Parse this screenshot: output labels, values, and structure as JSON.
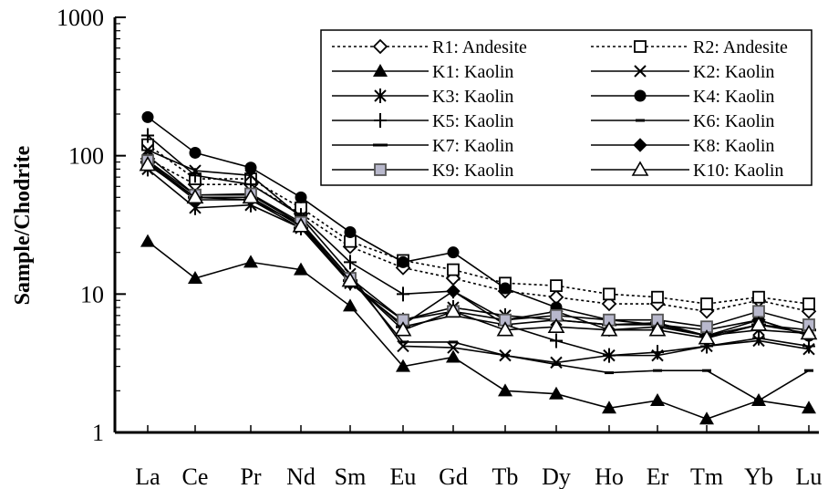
{
  "chart_data": {
    "type": "line",
    "title": "",
    "xlabel": "",
    "ylabel": "Sample/Chodrite",
    "yscale": "log",
    "ylim": [
      1,
      1000
    ],
    "yticks": [
      "1",
      "10",
      "100",
      "1000"
    ],
    "grid": false,
    "legend_position": "top-right",
    "categories": [
      "La",
      "Ce",
      "Pr",
      "Nd",
      "Sm",
      "Eu",
      "Gd",
      "Tb",
      "Dy",
      "Ho",
      "Er",
      "Tm",
      "Yb",
      "Lu"
    ],
    "series": [
      {
        "name": "R1: Andesite",
        "marker": "diamond-open",
        "line": "dotted",
        "values": [
          95,
          62,
          62,
          38,
          22,
          15.5,
          13,
          10.5,
          9.5,
          8.5,
          8.5,
          7.5,
          9,
          7.5
        ]
      },
      {
        "name": "R2: Andesite",
        "marker": "square-open",
        "line": "dotted",
        "values": [
          120,
          68,
          68,
          42,
          24,
          17.5,
          15,
          12,
          11.5,
          10,
          9.5,
          8.5,
          9.5,
          8.5
        ]
      },
      {
        "name": "K1: Kaolin",
        "marker": "triangle-filled",
        "line": "solid",
        "values": [
          24,
          13,
          17,
          15,
          8.2,
          3,
          3.5,
          2,
          1.9,
          1.5,
          1.7,
          1.25,
          1.7,
          1.5
        ]
      },
      {
        "name": "K2: Kaolin",
        "marker": "x",
        "line": "solid",
        "values": [
          110,
          78,
          72,
          36,
          14,
          4.2,
          4.1,
          3.6,
          3.2,
          3.6,
          3.6,
          4.2,
          4.6,
          4
        ]
      },
      {
        "name": "K3: Kaolin",
        "marker": "asterisk",
        "line": "solid",
        "values": [
          80,
          42,
          44,
          30,
          12,
          6.5,
          8,
          7,
          6.5,
          6,
          6,
          5,
          5.5,
          5.2
        ]
      },
      {
        "name": "K4: Kaolin",
        "marker": "circle-filled",
        "line": "solid",
        "values": [
          190,
          105,
          82,
          50,
          28,
          17,
          20,
          11,
          8,
          6.5,
          6,
          5.5,
          6.5,
          5
        ]
      },
      {
        "name": "K5: Kaolin",
        "marker": "plus",
        "line": "solid",
        "values": [
          140,
          72,
          62,
          37,
          17,
          10,
          10.5,
          6,
          4.6,
          3.6,
          3.8,
          4.2,
          4.8,
          4.2
        ]
      },
      {
        "name": "K6: Kaolin",
        "marker": "dash-small",
        "line": "solid",
        "values": [
          100,
          52,
          52,
          32,
          13,
          4.5,
          4.5,
          3.6,
          3.1,
          2.7,
          2.8,
          2.8,
          1.7,
          2.8
        ]
      },
      {
        "name": "K7: Kaolin",
        "marker": "dash",
        "line": "solid",
        "values": [
          90,
          50,
          48,
          30,
          12.5,
          5.8,
          7,
          6,
          6.5,
          6,
          6.2,
          5,
          6,
          5.5
        ]
      },
      {
        "name": "K8: Kaolin",
        "marker": "diamond-filled",
        "line": "solid",
        "values": [
          88,
          48,
          48,
          32,
          12,
          6,
          10.5,
          6.5,
          7.5,
          5.5,
          5.8,
          5,
          6.5,
          5
        ]
      },
      {
        "name": "K9: Kaolin",
        "marker": "square-gray",
        "line": "solid",
        "values": [
          92,
          52,
          53,
          33,
          13,
          6.5,
          7.5,
          6.5,
          7,
          6.5,
          6.5,
          5.8,
          7.5,
          6
        ]
      },
      {
        "name": "K10: Kaolin",
        "marker": "triangle-open",
        "line": "solid",
        "values": [
          86,
          50,
          50,
          31,
          12.5,
          5.5,
          7.5,
          5.5,
          5.8,
          5.5,
          5.5,
          4.8,
          6,
          5.2
        ]
      }
    ]
  }
}
